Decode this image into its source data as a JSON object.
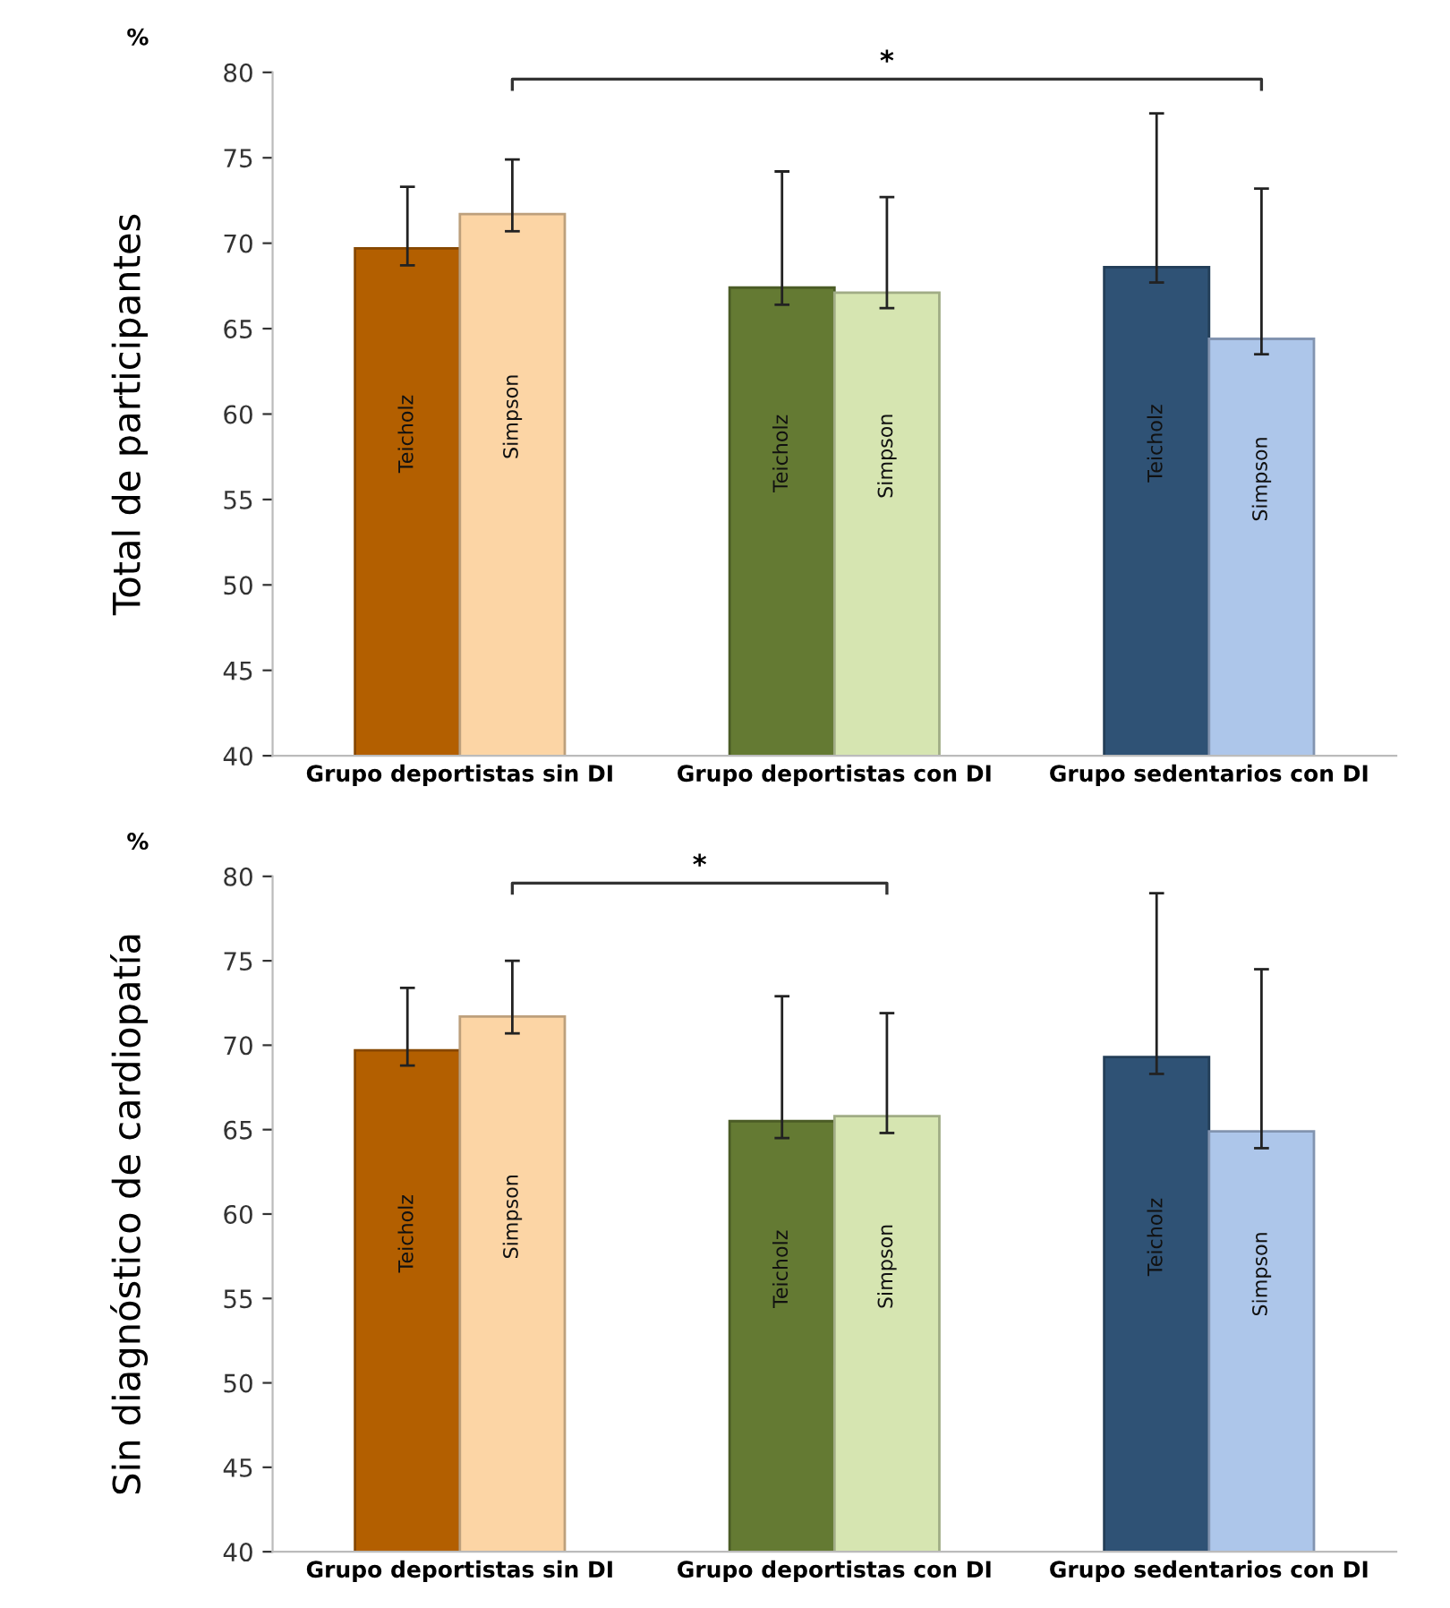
{
  "chart_data": [
    {
      "type": "bar",
      "ylabel": "Total de participantes",
      "categories": [
        "Grupo deportistas sin DI",
        "Grupo deportistas con DI",
        "Grupo sedentarios con DI"
      ],
      "ylim": [
        40,
        80
      ],
      "yticks": [
        40,
        45,
        50,
        55,
        60,
        65,
        70,
        75,
        80
      ],
      "grid": false,
      "legend": false,
      "annotations": [
        "%",
        "*"
      ],
      "series": [
        {
          "name": "Teicholz",
          "colors": [
            "#b35f00",
            "#647a33",
            "#2f5275"
          ],
          "values": [
            69.7,
            67.4,
            68.6
          ],
          "errors": [
            [
              68.7,
              73.3
            ],
            [
              66.4,
              74.2
            ],
            [
              67.7,
              77.6
            ]
          ]
        },
        {
          "name": "Simpson",
          "colors": [
            "#fcd5a5",
            "#d6e5b1",
            "#adc6ea"
          ],
          "values": [
            71.7,
            67.1,
            64.4
          ],
          "errors": [
            [
              70.7,
              74.9
            ],
            [
              66.2,
              72.7
            ],
            [
              63.5,
              73.2
            ]
          ]
        }
      ]
    },
    {
      "type": "bar",
      "ylabel": "Sin diagnóstico de cardiopatía",
      "categories": [
        "Grupo deportistas sin DI",
        "Grupo deportistas con DI",
        "Grupo sedentarios con DI"
      ],
      "ylim": [
        40,
        80
      ],
      "yticks": [
        40,
        45,
        50,
        55,
        60,
        65,
        70,
        75,
        80
      ],
      "grid": false,
      "legend": false,
      "annotations": [
        "%",
        "*"
      ],
      "series": [
        {
          "name": "Teicholz",
          "colors": [
            "#b35f00",
            "#647a33",
            "#2f5275"
          ],
          "values": [
            69.7,
            65.5,
            69.3
          ],
          "errors": [
            [
              68.8,
              73.4
            ],
            [
              64.5,
              72.9
            ],
            [
              68.3,
              79.0
            ]
          ]
        },
        {
          "name": "Simpson",
          "colors": [
            "#fcd5a5",
            "#d6e5b1",
            "#adc6ea"
          ],
          "values": [
            71.7,
            65.8,
            64.9
          ],
          "errors": [
            [
              70.7,
              75.0
            ],
            [
              64.8,
              71.9
            ],
            [
              63.9,
              74.5
            ]
          ]
        }
      ]
    }
  ]
}
